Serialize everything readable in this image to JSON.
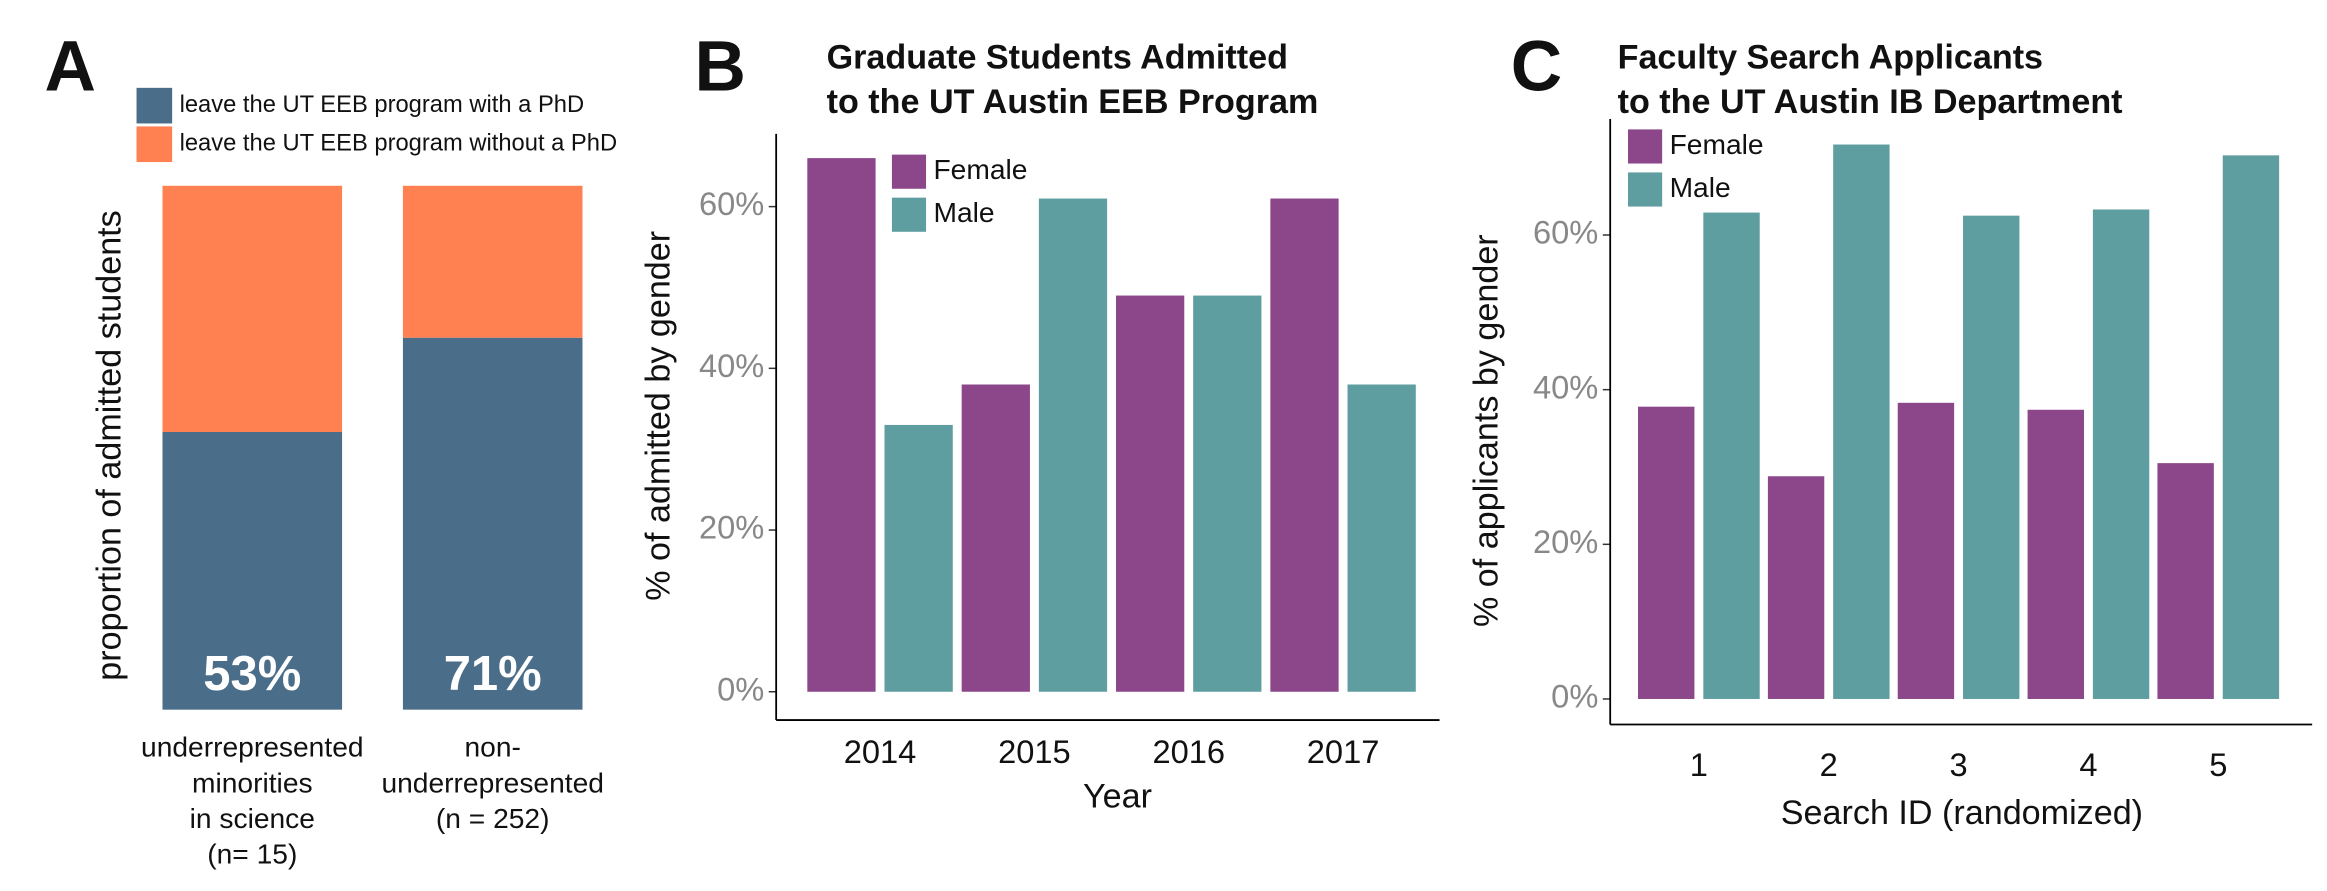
{
  "chart_data": [
    {
      "type": "stacked_bar",
      "panel_label": "A",
      "y_label": "proportion of admitted students",
      "categories": [
        "underrepresented\nminorities\nin science\n(n= 15)",
        "non-\nunderrepresented\n(n = 252)"
      ],
      "ylim": [
        0,
        100
      ],
      "series": [
        {
          "name": "leave the UT EEB program with a PhD",
          "color": "#4a6d89",
          "values": [
            53,
            71
          ],
          "value_labels": [
            "53%",
            "71%"
          ]
        },
        {
          "name": "leave the UT EEB program without a PhD",
          "color": "#ff8050",
          "values": [
            47,
            29
          ]
        }
      ]
    },
    {
      "type": "bar",
      "panel_label": "B",
      "title": "Graduate Students Admitted\nto the UT Austin EEB Program",
      "x_label": "Year",
      "y_label": "% of admitted by gender",
      "categories": [
        "2014",
        "2015",
        "2016",
        "2017"
      ],
      "ylim": [
        -3.5,
        69
      ],
      "yticks": [
        {
          "value": 0,
          "label": "0%"
        },
        {
          "value": 20,
          "label": "20%"
        },
        {
          "value": 40,
          "label": "40%"
        },
        {
          "value": 60,
          "label": "60%"
        }
      ],
      "series": [
        {
          "name": "Female",
          "color": "#8b4789",
          "values": [
            66,
            38,
            49,
            61
          ]
        },
        {
          "name": "Male",
          "color": "#5f9ea0",
          "values": [
            33,
            61,
            49,
            38
          ]
        }
      ]
    },
    {
      "type": "bar",
      "panel_label": "C",
      "title": "Faculty Search Applicants\nto the UT Austin IB Department",
      "x_label": "Search ID (randomized)",
      "y_label": "% of applicants by gender",
      "categories": [
        "1",
        "2",
        "3",
        "4",
        "5"
      ],
      "ylim": [
        -3.3,
        75
      ],
      "yticks": [
        {
          "value": 0,
          "label": "0%"
        },
        {
          "value": 20,
          "label": "20%"
        },
        {
          "value": 40,
          "label": "40%"
        },
        {
          "value": 60,
          "label": "60%"
        }
      ],
      "series": [
        {
          "name": "Female",
          "color": "#8b4789",
          "values": [
            37.8,
            28.8,
            38.3,
            37.4,
            30.5
          ]
        },
        {
          "name": "Male",
          "color": "#5f9ea0",
          "values": [
            62.9,
            71.7,
            62.5,
            63.3,
            70.3
          ]
        }
      ]
    }
  ]
}
